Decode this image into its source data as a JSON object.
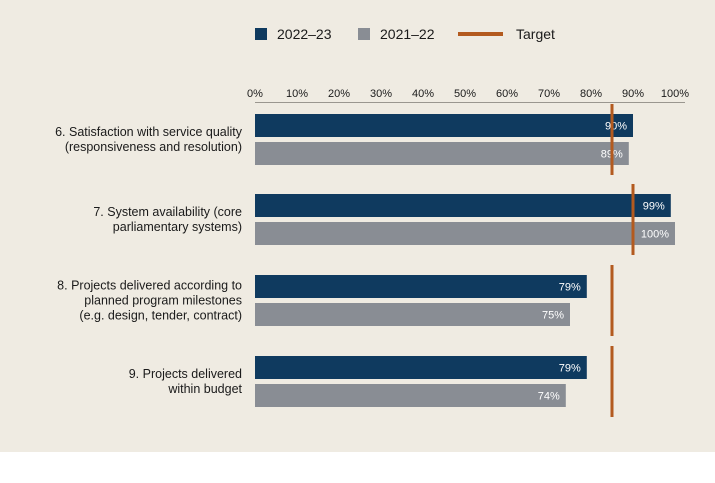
{
  "chart_data": {
    "type": "bar",
    "orientation": "horizontal",
    "title": "",
    "xlabel": "",
    "ylabel": "",
    "xlim": [
      0,
      100
    ],
    "ticks": [
      "0%",
      "10%",
      "20%",
      "30%",
      "40%",
      "50%",
      "60%",
      "70%",
      "80%",
      "90%",
      "100%"
    ],
    "legend_position": "top",
    "categories": [
      [
        "6. Satisfaction with service quality",
        "(responsiveness and resolution)"
      ],
      [
        "7. System availability (core",
        "parliamentary systems)"
      ],
      [
        "8. Projects delivered according to",
        "planned program milestones",
        "(e.g. design, tender, contract)"
      ],
      [
        "9. Projects delivered",
        "within budget"
      ]
    ],
    "series": [
      {
        "name": "2022–23",
        "color": "#0f3a5f",
        "values": [
          90,
          99,
          79,
          79
        ],
        "labels": [
          "90%",
          "99%",
          "79%",
          "79%"
        ]
      },
      {
        "name": "2021–22",
        "color": "#898d94",
        "values": [
          89,
          100,
          75,
          74
        ],
        "labels": [
          "89%",
          "100%",
          "75%",
          "74%"
        ]
      }
    ],
    "target": {
      "name": "Target",
      "color": "#b35a1f",
      "values": [
        85,
        90,
        85,
        85
      ]
    }
  }
}
